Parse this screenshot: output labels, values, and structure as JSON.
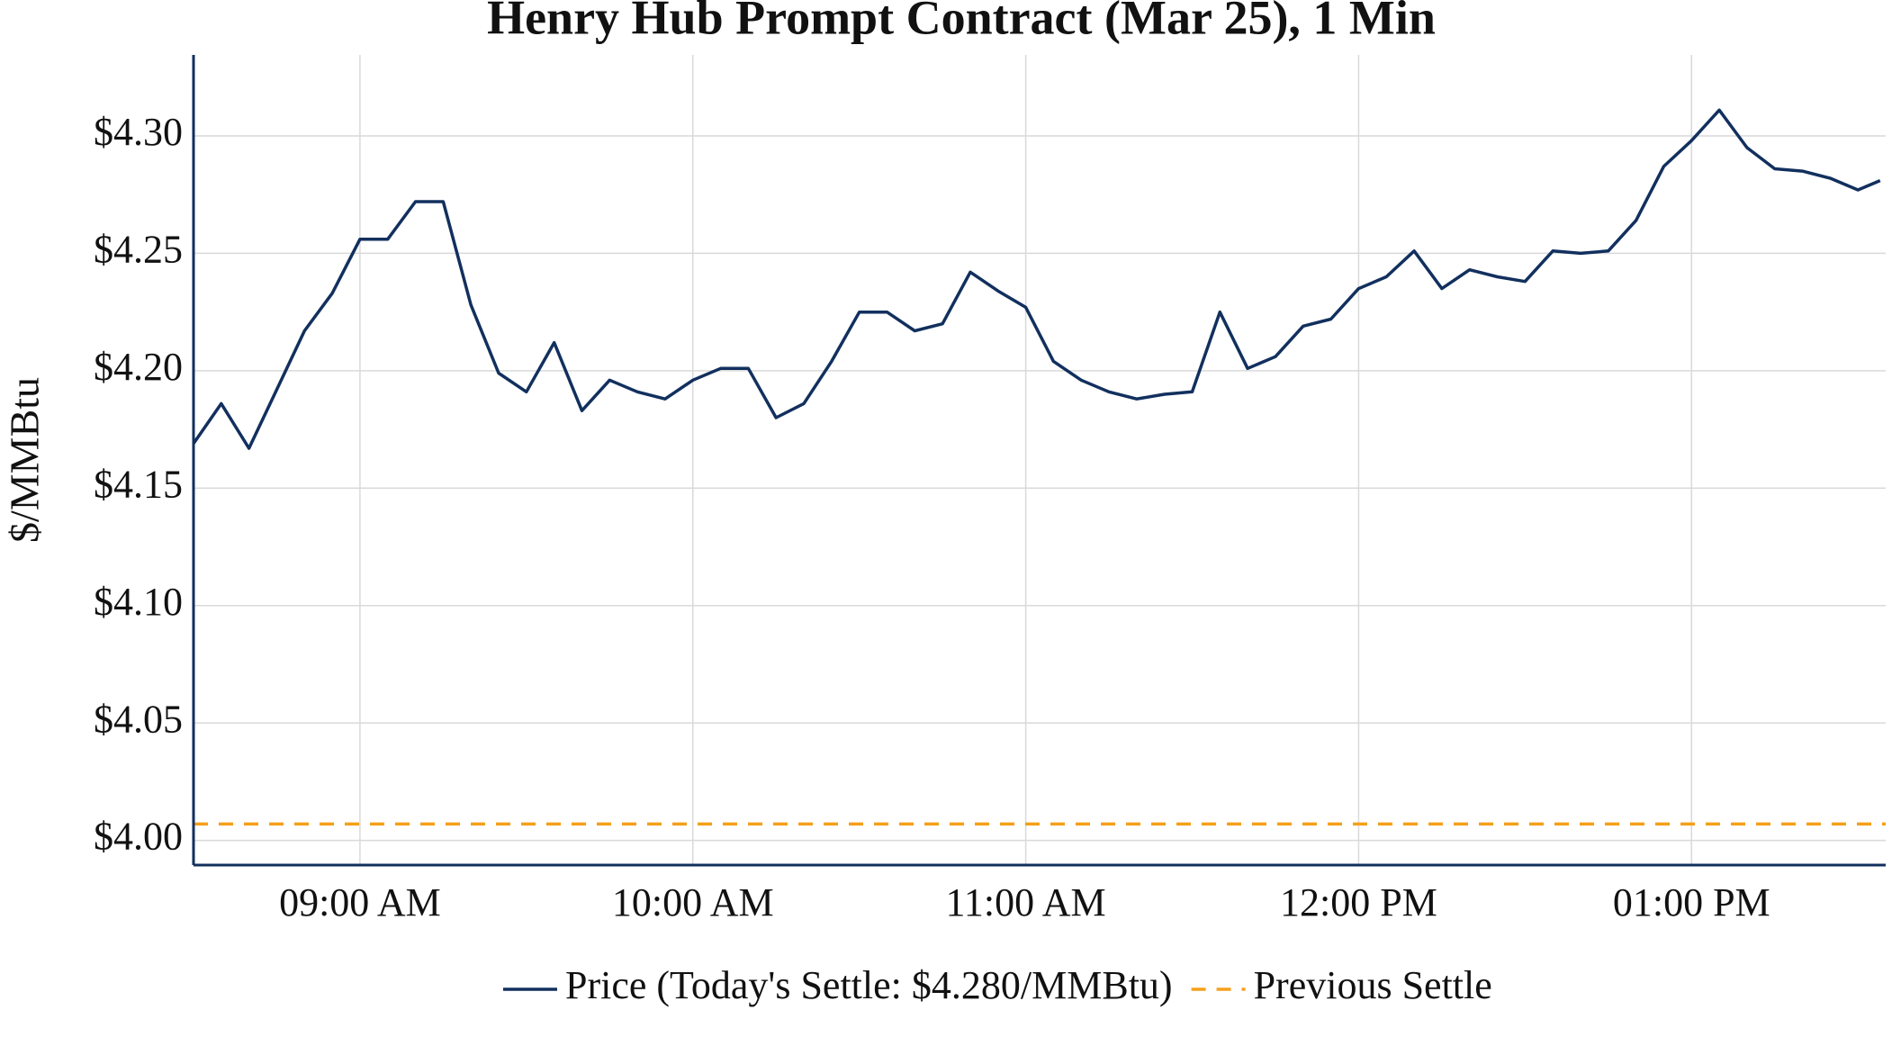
{
  "chart_data": {
    "type": "line",
    "title": "Henry Hub Prompt Contract (Mar 25), 1 Min",
    "y_label": "$/MMBtu",
    "x": [
      "08:30",
      "08:35",
      "08:40",
      "08:45",
      "08:50",
      "08:55",
      "09:00",
      "09:05",
      "09:10",
      "09:15",
      "09:20",
      "09:25",
      "09:30",
      "09:35",
      "09:40",
      "09:45",
      "09:50",
      "09:55",
      "10:00",
      "10:05",
      "10:10",
      "10:15",
      "10:20",
      "10:25",
      "10:30",
      "10:35",
      "10:40",
      "10:45",
      "10:50",
      "10:55",
      "11:00",
      "11:05",
      "11:10",
      "11:15",
      "11:20",
      "11:25",
      "11:30",
      "11:35",
      "11:40",
      "11:45",
      "11:50",
      "11:55",
      "12:00",
      "12:05",
      "12:10",
      "12:15",
      "12:20",
      "12:25",
      "12:30",
      "12:35",
      "12:40",
      "12:45",
      "12:50",
      "12:55",
      "13:00",
      "13:05",
      "13:10",
      "13:15",
      "13:20",
      "13:25",
      "13:30",
      "13:34"
    ],
    "series": [
      {
        "name": "Price (Today's Settle: $4.280/MMBtu)",
        "color": "#12305e",
        "values": [
          4.169,
          4.186,
          4.167,
          4.192,
          4.217,
          4.233,
          4.256,
          4.256,
          4.272,
          4.272,
          4.228,
          4.199,
          4.191,
          4.212,
          4.183,
          4.196,
          4.191,
          4.188,
          4.196,
          4.201,
          4.201,
          4.18,
          4.186,
          4.204,
          4.225,
          4.225,
          4.217,
          4.22,
          4.242,
          4.234,
          4.227,
          4.204,
          4.196,
          4.191,
          4.188,
          4.19,
          4.191,
          4.225,
          4.201,
          4.206,
          4.219,
          4.222,
          4.235,
          4.24,
          4.251,
          4.235,
          4.243,
          4.24,
          4.238,
          4.251,
          4.25,
          4.251,
          4.264,
          4.287,
          4.298,
          4.311,
          4.295,
          4.286,
          4.285,
          4.282,
          4.277,
          4.281
        ]
      }
    ],
    "reference_lines": [
      {
        "name": "Previous Settle",
        "value": 4.007,
        "color": "#f5a01a",
        "dash": true
      }
    ],
    "xlim": [
      "08:30",
      "13:35"
    ],
    "xticks": [
      {
        "value": "09:00",
        "label": "09:00 AM"
      },
      {
        "value": "10:00",
        "label": "10:00 AM"
      },
      {
        "value": "11:00",
        "label": "11:00 AM"
      },
      {
        "value": "12:00",
        "label": "12:00 PM"
      },
      {
        "value": "13:00",
        "label": "01:00 PM"
      }
    ],
    "ylim": [
      3.9895,
      4.3345
    ],
    "yticks": [
      {
        "value": 4.0,
        "label": "$4.00"
      },
      {
        "value": 4.05,
        "label": "$4.05"
      },
      {
        "value": 4.1,
        "label": "$4.10"
      },
      {
        "value": 4.15,
        "label": "$4.15"
      },
      {
        "value": 4.2,
        "label": "$4.20"
      },
      {
        "value": 4.25,
        "label": "$4.25"
      },
      {
        "value": 4.3,
        "label": "$4.30"
      }
    ],
    "grid": true,
    "legend": "bottom"
  }
}
